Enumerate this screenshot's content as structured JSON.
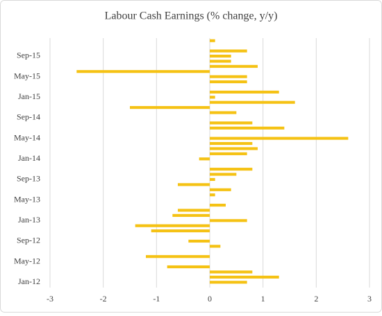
{
  "chart_data": {
    "type": "barh",
    "title": "Labour Cash Earnings (% change, y/y)",
    "categories": [
      "Jan-12",
      null,
      null,
      null,
      "May-12",
      null,
      null,
      null,
      "Sep-12",
      null,
      null,
      null,
      "Jan-13",
      null,
      null,
      null,
      "May-13",
      null,
      null,
      null,
      "Sep-13",
      null,
      null,
      null,
      "Jan-14",
      null,
      null,
      null,
      "May-14",
      null,
      null,
      null,
      "Sep-14",
      null,
      null,
      null,
      "Jan-15",
      null,
      null,
      null,
      "May-15",
      null,
      null,
      null,
      "Sep-15",
      null,
      null,
      null
    ],
    "values": [
      0.7,
      1.3,
      0.8,
      -0.8,
      0,
      -1.2,
      0,
      0.2,
      -0.4,
      0,
      -1.1,
      -1.4,
      0.7,
      -0.7,
      -0.6,
      0.3,
      0,
      0.1,
      0.4,
      -0.6,
      0.1,
      0.5,
      0.8,
      0,
      -0.2,
      0.7,
      0.9,
      0.8,
      2.6,
      0,
      1.4,
      0.8,
      0,
      0.5,
      -1.5,
      1.6,
      0.1,
      1.3,
      0,
      0.7,
      0.7,
      -2.5,
      0.9,
      0.4,
      0.4,
      0.7,
      0,
      0.1
    ],
    "color": "#f5c214",
    "xlim": [
      -3,
      3
    ],
    "xticks": [
      -3,
      -2,
      -1,
      0,
      1,
      2,
      3
    ],
    "grid": true
  }
}
